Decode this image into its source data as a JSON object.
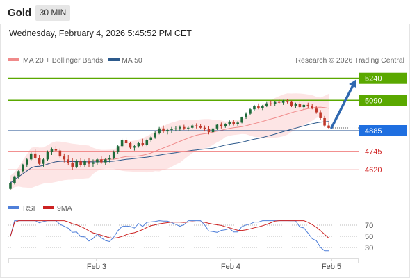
{
  "header": {
    "title": "Gold",
    "interval": "30 MIN"
  },
  "datetime": "Wednesday, February 4, 2026 5:45:52 PM CET",
  "legend": [
    {
      "label": "MA 20 + Bollinger Bands",
      "color": "#f08a8a"
    },
    {
      "label": "MA 50",
      "color": "#2d5a8c"
    }
  ],
  "attribution": "Research © 2026 Trading Central",
  "colors": {
    "resistance": "#5aa800",
    "support": "#f08080",
    "pivot": "#1a4a8c",
    "price_tag": "#1f6fe0",
    "bull": "#1f6a3a",
    "bear": "#c0392b",
    "bb_fill": "#fde0e0",
    "rsi": "#4f7fd9",
    "rsi_ma": "#cc2222",
    "arrow": "#2f68b0"
  },
  "chart_data": {
    "type": "candlestick",
    "ylim": [
      4470,
      5300
    ],
    "x_ticks": [
      "Feb 3",
      "Feb 4",
      "Feb 5"
    ],
    "levels": [
      {
        "value": 5240,
        "label": "5240",
        "kind": "resistance"
      },
      {
        "value": 5090,
        "label": "5090",
        "kind": "resistance"
      },
      {
        "value": 4885,
        "label": "4885",
        "kind": "pivot"
      },
      {
        "value": 4745,
        "label": "4745",
        "kind": "support"
      },
      {
        "value": 4620,
        "label": "4620",
        "kind": "support"
      }
    ],
    "current_price": 4904,
    "forecast_arrow": {
      "from": 4904,
      "to": 5240
    },
    "candles": [
      [
        4490,
        4540,
        4480,
        4530
      ],
      [
        4530,
        4580,
        4520,
        4575
      ],
      [
        4575,
        4620,
        4560,
        4610
      ],
      [
        4610,
        4660,
        4600,
        4655
      ],
      [
        4655,
        4700,
        4640,
        4690
      ],
      [
        4690,
        4740,
        4680,
        4730
      ],
      [
        4730,
        4760,
        4690,
        4700
      ],
      [
        4700,
        4720,
        4650,
        4660
      ],
      [
        4660,
        4700,
        4640,
        4690
      ],
      [
        4690,
        4750,
        4680,
        4740
      ],
      [
        4740,
        4770,
        4720,
        4760
      ],
      [
        4760,
        4780,
        4740,
        4750
      ],
      [
        4750,
        4765,
        4700,
        4710
      ],
      [
        4710,
        4730,
        4670,
        4690
      ],
      [
        4690,
        4720,
        4650,
        4665
      ],
      [
        4665,
        4700,
        4620,
        4640
      ],
      [
        4640,
        4690,
        4630,
        4680
      ],
      [
        4680,
        4700,
        4640,
        4650
      ],
      [
        4650,
        4690,
        4640,
        4680
      ],
      [
        4680,
        4700,
        4640,
        4660
      ],
      [
        4660,
        4690,
        4640,
        4670
      ],
      [
        4670,
        4700,
        4650,
        4690
      ],
      [
        4690,
        4710,
        4660,
        4670
      ],
      [
        4670,
        4700,
        4650,
        4690
      ],
      [
        4690,
        4720,
        4670,
        4700
      ],
      [
        4700,
        4750,
        4690,
        4740
      ],
      [
        4740,
        4790,
        4730,
        4780
      ],
      [
        4780,
        4830,
        4770,
        4820
      ],
      [
        4820,
        4840,
        4790,
        4800
      ],
      [
        4800,
        4810,
        4760,
        4770
      ],
      [
        4770,
        4790,
        4750,
        4780
      ],
      [
        4780,
        4810,
        4770,
        4800
      ],
      [
        4800,
        4830,
        4780,
        4790
      ],
      [
        4790,
        4830,
        4780,
        4820
      ],
      [
        4820,
        4850,
        4810,
        4840
      ],
      [
        4840,
        4880,
        4830,
        4870
      ],
      [
        4870,
        4910,
        4860,
        4900
      ],
      [
        4900,
        4920,
        4870,
        4880
      ],
      [
        4880,
        4900,
        4860,
        4890
      ],
      [
        4890,
        4910,
        4870,
        4895
      ],
      [
        4895,
        4915,
        4880,
        4900
      ],
      [
        4900,
        4920,
        4885,
        4910
      ],
      [
        4910,
        4925,
        4890,
        4900
      ],
      [
        4900,
        4915,
        4880,
        4905
      ],
      [
        4905,
        4930,
        4895,
        4920
      ],
      [
        4920,
        4935,
        4900,
        4915
      ],
      [
        4915,
        4930,
        4895,
        4905
      ],
      [
        4905,
        4920,
        4880,
        4895
      ],
      [
        4895,
        4915,
        4860,
        4875
      ],
      [
        4875,
        4905,
        4865,
        4900
      ],
      [
        4900,
        4930,
        4890,
        4925
      ],
      [
        4925,
        4940,
        4900,
        4915
      ],
      [
        4915,
        4935,
        4905,
        4930
      ],
      [
        4930,
        4955,
        4920,
        4945
      ],
      [
        4945,
        4960,
        4920,
        4930
      ],
      [
        4930,
        4950,
        4915,
        4940
      ],
      [
        4940,
        4980,
        4935,
        4975
      ],
      [
        4975,
        5010,
        4965,
        5000
      ],
      [
        5000,
        5040,
        4990,
        5030
      ],
      [
        5030,
        5060,
        5020,
        5050
      ],
      [
        5050,
        5070,
        5030,
        5040
      ],
      [
        5040,
        5060,
        5025,
        5055
      ],
      [
        5055,
        5080,
        5045,
        5070
      ],
      [
        5070,
        5090,
        5055,
        5065
      ],
      [
        5065,
        5085,
        5050,
        5080
      ],
      [
        5080,
        5100,
        5065,
        5075
      ],
      [
        5075,
        5095,
        5060,
        5085
      ],
      [
        5085,
        5100,
        5070,
        5080
      ],
      [
        5080,
        5090,
        5045,
        5055
      ],
      [
        5055,
        5075,
        5040,
        5065
      ],
      [
        5065,
        5080,
        5035,
        5045
      ],
      [
        5045,
        5065,
        5030,
        5060
      ],
      [
        5060,
        5075,
        5040,
        5050
      ],
      [
        5050,
        5065,
        5030,
        5035
      ],
      [
        5035,
        5050,
        5000,
        5010
      ],
      [
        5010,
        5025,
        4960,
        4970
      ],
      [
        4970,
        4985,
        4910,
        4920
      ],
      [
        4920,
        4940,
        4895,
        4904
      ]
    ]
  },
  "rsi": {
    "label": "RSI",
    "ma_label": "9MA",
    "ylim": [
      20,
      80
    ],
    "ticks": [
      70,
      50,
      30
    ]
  }
}
